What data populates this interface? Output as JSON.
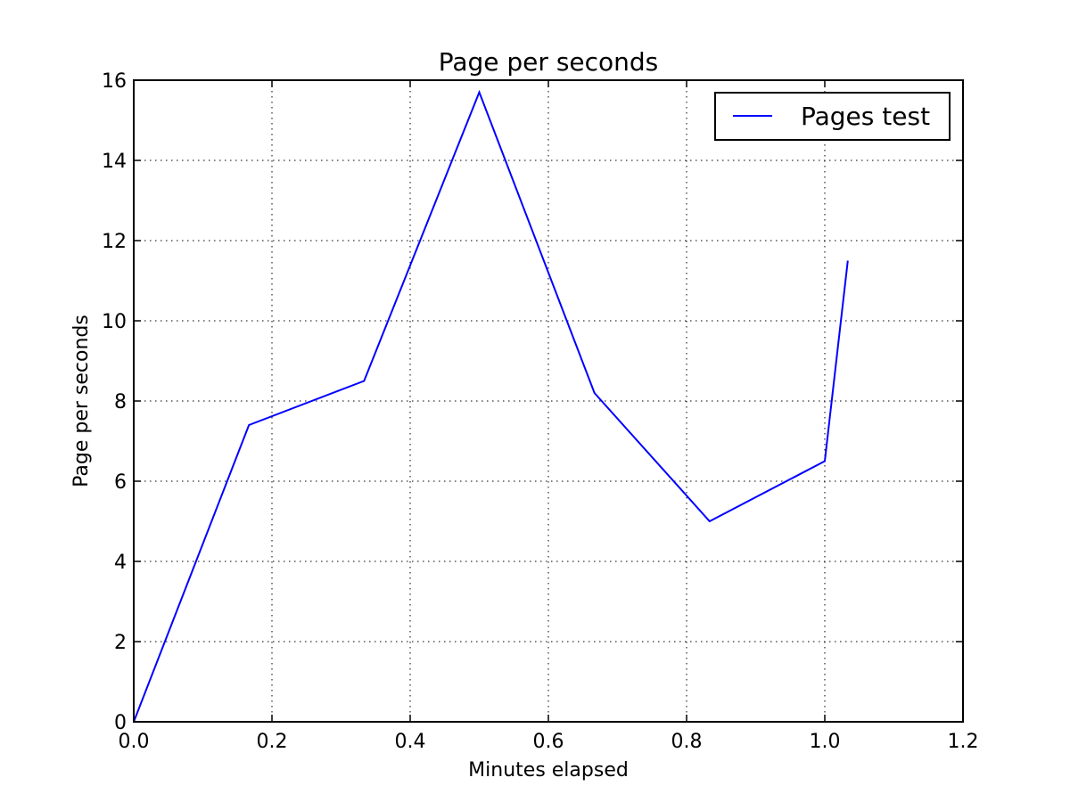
{
  "chart_data": {
    "type": "line",
    "title": "Page per seconds",
    "xlabel": "Minutes elapsed",
    "ylabel": "Page per seconds",
    "xlim": [
      0.0,
      1.2
    ],
    "ylim": [
      0,
      16
    ],
    "xticks": [
      "0.0",
      "0.2",
      "0.4",
      "0.6",
      "0.8",
      "1.0",
      "1.2"
    ],
    "yticks": [
      "0",
      "2",
      "4",
      "6",
      "8",
      "10",
      "12",
      "14",
      "16"
    ],
    "grid": true,
    "grid_style": "dotted",
    "legend_position": "top-right",
    "series": [
      {
        "name": "Pages test",
        "color": "#0000ff",
        "x": [
          0.0,
          0.1667,
          0.3333,
          0.5,
          0.6667,
          0.8333,
          1.0,
          1.0333
        ],
        "y": [
          0.0,
          7.4,
          8.5,
          15.7,
          8.2,
          5.0,
          6.5,
          11.5
        ]
      }
    ]
  }
}
